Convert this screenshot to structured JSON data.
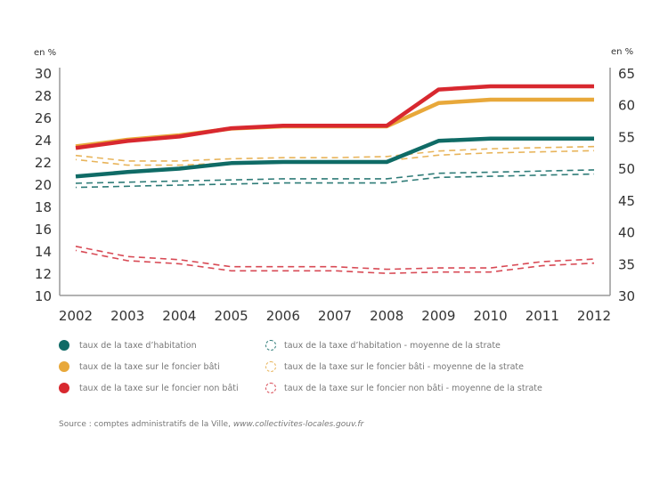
{
  "chart_data": {
    "type": "line",
    "title": "",
    "x": [
      "2002",
      "2003",
      "2004",
      "2005",
      "2006",
      "2007",
      "2008",
      "2009",
      "2010",
      "2011",
      "2012"
    ],
    "left_axis": {
      "label": "en %",
      "ticks": [
        "10",
        "12",
        "14",
        "16",
        "18",
        "20",
        "22",
        "24",
        "26",
        "28",
        "30"
      ],
      "ylim": [
        10,
        30
      ]
    },
    "right_axis": {
      "label": "en %",
      "ticks": [
        "30",
        "35",
        "40",
        "45",
        "50",
        "55",
        "60",
        "65"
      ],
      "ylim": [
        30,
        65
      ]
    },
    "grid": false,
    "legend_position": "bottom",
    "series": [
      {
        "name": "taux de la taxe d’habitation",
        "color": "#0f6b66",
        "style": "solid",
        "axis": "left",
        "values": [
          20.7,
          21.1,
          21.4,
          21.9,
          22.0,
          22.0,
          22.0,
          23.9,
          24.1,
          24.1,
          24.1
        ]
      },
      {
        "name": "taux de la taxe sur le foncier bâti",
        "color": "#e8a83a",
        "style": "solid",
        "axis": "left",
        "values": [
          23.4,
          24.0,
          24.4,
          25.0,
          25.2,
          25.2,
          25.2,
          27.3,
          27.6,
          27.6,
          27.6
        ]
      },
      {
        "name": "taux de la taxe sur le foncier non bâti",
        "color": "#d8282f",
        "style": "solid",
        "axis": "right",
        "values": [
          53.2,
          54.3,
          55.0,
          56.3,
          56.7,
          56.7,
          56.7,
          62.4,
          62.9,
          62.9,
          62.9
        ]
      },
      {
        "name": "taux de la taxe d’habitation - moyenne de la strate",
        "color": "#2f7c78",
        "style": "dashed",
        "axis": "left",
        "values": [
          19.9,
          20.0,
          20.1,
          20.2,
          20.3,
          20.3,
          20.3,
          20.8,
          20.9,
          21.0,
          21.1
        ]
      },
      {
        "name": "taux de la taxe sur le foncier bâti - moyenne de la strate",
        "color": "#e8b45a",
        "style": "dashed",
        "axis": "left",
        "values": [
          22.4,
          21.9,
          21.9,
          22.1,
          22.2,
          22.2,
          22.3,
          22.8,
          23.0,
          23.1,
          23.2
        ]
      },
      {
        "name": "taux de la taxe sur le foncier non bâti - moyenne de la strate",
        "color": "#d84a55",
        "style": "dashed",
        "axis": "right",
        "values": [
          37.4,
          35.8,
          35.3,
          34.2,
          34.2,
          34.2,
          33.8,
          34.0,
          34.0,
          35.0,
          35.4
        ]
      }
    ]
  },
  "legend": [
    {
      "label": "taux de la taxe d’habitation",
      "color": "#0f6b66",
      "kind": "solid"
    },
    {
      "label": "taux de la taxe sur le foncier bâti",
      "color": "#e8a83a",
      "kind": "solid"
    },
    {
      "label": "taux de la taxe sur le foncier non bâti",
      "color": "#d8282f",
      "kind": "solid"
    },
    {
      "label": "taux de la taxe d’habitation - moyenne de la strate",
      "color": "#2f7c78",
      "kind": "dashed"
    },
    {
      "label": "taux de la taxe sur le foncier bâti - moyenne de la strate",
      "color": "#e8b45a",
      "kind": "dashed"
    },
    {
      "label": "taux de la taxe sur le foncier non bâti - moyenne de la strate",
      "color": "#d84a55",
      "kind": "dashed"
    }
  ],
  "source": {
    "prefix": "Source : comptes administratifs de la Ville, ",
    "link": "www.collectivites-locales.gouv.fr"
  }
}
